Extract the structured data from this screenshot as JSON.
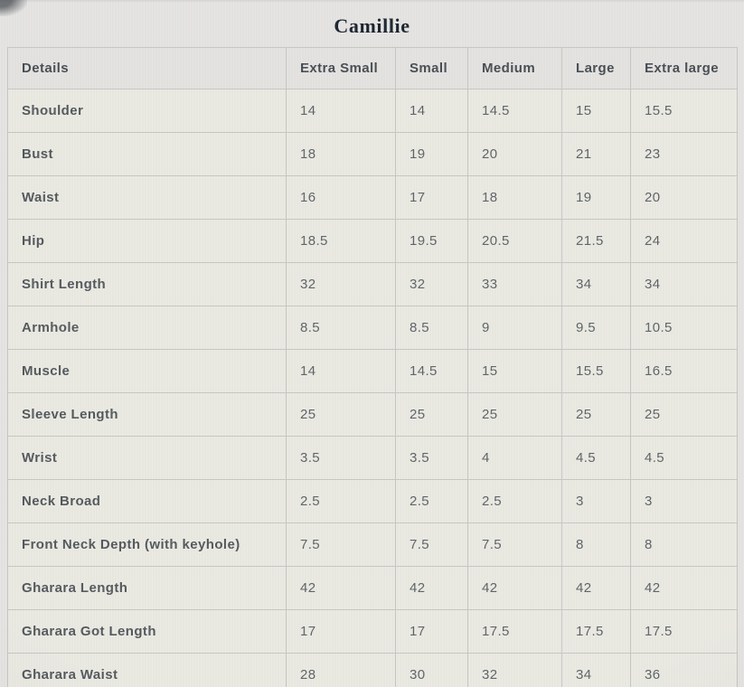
{
  "page_title": "Camillie",
  "chart_data": {
    "type": "table",
    "title": "Camillie",
    "columns": [
      "Details",
      "Extra Small",
      "Small",
      "Medium",
      "Large",
      "Extra large"
    ],
    "rows": [
      {
        "label": "Shoulder",
        "values": [
          "14",
          "14",
          "14.5",
          "15",
          "15.5"
        ]
      },
      {
        "label": "Bust",
        "values": [
          "18",
          "19",
          "20",
          "21",
          "23"
        ]
      },
      {
        "label": "Waist",
        "values": [
          "16",
          "17",
          "18",
          "19",
          "20"
        ]
      },
      {
        "label": "Hip",
        "values": [
          "18.5",
          "19.5",
          "20.5",
          "21.5",
          "24"
        ]
      },
      {
        "label": "Shirt Length",
        "values": [
          "32",
          "32",
          "33",
          "34",
          "34"
        ]
      },
      {
        "label": "Armhole",
        "values": [
          "8.5",
          "8.5",
          "9",
          "9.5",
          "10.5"
        ]
      },
      {
        "label": "Muscle",
        "values": [
          "14",
          "14.5",
          "15",
          "15.5",
          "16.5"
        ]
      },
      {
        "label": "Sleeve Length",
        "values": [
          "25",
          "25",
          "25",
          "25",
          "25"
        ]
      },
      {
        "label": "Wrist",
        "values": [
          "3.5",
          "3.5",
          "4",
          "4.5",
          "4.5"
        ]
      },
      {
        "label": "Neck Broad",
        "values": [
          "2.5",
          "2.5",
          "2.5",
          "3",
          "3"
        ]
      },
      {
        "label": "Front Neck Depth (with keyhole)",
        "values": [
          "7.5",
          "7.5",
          "7.5",
          "8",
          "8"
        ]
      },
      {
        "label": "Gharara Length",
        "values": [
          "42",
          "42",
          "42",
          "42",
          "42"
        ]
      },
      {
        "label": "Gharara Got Length",
        "values": [
          "17",
          "17",
          "17.5",
          "17.5",
          "17.5"
        ]
      },
      {
        "label": "Gharara Waist",
        "values": [
          "28",
          "30",
          "32",
          "34",
          "36"
        ]
      }
    ]
  },
  "colors": {
    "page_bg": "#e5e4e2",
    "table_bg": "#eaeae3",
    "header_bg": "#e4e3e0",
    "border": "#c6c7c2",
    "title_text": "#1a242e",
    "header_text": "#474d53",
    "label_text": "#53585c",
    "value_text": "#5e6366"
  }
}
